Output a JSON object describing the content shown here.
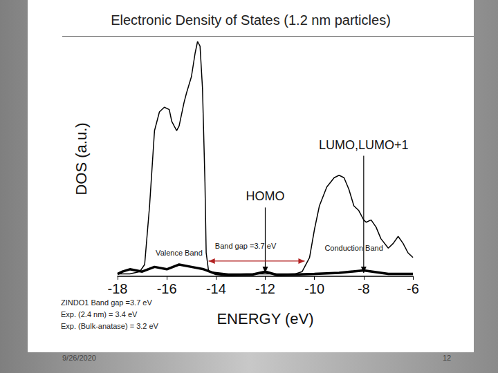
{
  "chart_data": {
    "type": "line",
    "title": "Electronic Density of States (1.2 nm particles)",
    "xlabel": "ENERGY (eV)",
    "ylabel": "DOS (a.u.)",
    "xlim": [
      -18,
      -6
    ],
    "xticks": [
      -18,
      -16,
      -14,
      -12,
      -10,
      -8,
      -6
    ],
    "ylim": [
      0,
      100
    ],
    "tick_labels": "x",
    "grid": false,
    "series": [
      {
        "color": "#000000",
        "line_style": "solid",
        "x": [
          -18,
          -17.5,
          -17.1,
          -16.9,
          -16.7,
          -16.5,
          -16.3,
          -16.1,
          -15.9,
          -15.8,
          -15.6,
          -15.5,
          -15.3,
          -15.2,
          -15.0,
          -14.85,
          -14.75,
          -14.65,
          -14.55,
          -14.45,
          -14.4,
          -14.3,
          -13.5,
          -12.5,
          -11.5,
          -10.8,
          -10.5,
          -10.2,
          -10.0,
          -9.8,
          -9.5,
          -9.2,
          -9.0,
          -8.8,
          -8.6,
          -8.4,
          -8.2,
          -8.0,
          -7.9,
          -7.7,
          -7.5,
          -7.3,
          -7.0,
          -6.8,
          -6.6,
          -6.4,
          -6.2,
          -6.0
        ],
        "values": [
          1,
          1,
          2,
          5,
          30,
          62,
          70,
          72,
          71,
          66,
          62,
          64,
          74,
          78,
          85,
          95,
          100,
          98,
          80,
          40,
          10,
          2,
          1,
          1,
          1,
          1,
          2,
          8,
          20,
          30,
          38,
          42,
          43,
          42,
          37,
          30,
          28,
          24,
          23,
          24,
          21,
          16,
          12,
          14,
          17,
          14,
          10,
          8
        ]
      },
      {
        "color": "#000000",
        "line_style": "solid",
        "x": [
          -18,
          -17.8,
          -17.5,
          -17.0,
          -16.5,
          -16.0,
          -15.5,
          -15.0,
          -14.5,
          -14.0,
          -13.5,
          -12.5,
          -12.0,
          -11.5,
          -10.0,
          -9.0,
          -8.0,
          -7.0,
          -6.0
        ],
        "values": [
          1,
          2,
          3,
          2,
          4,
          3,
          5,
          4,
          3,
          1,
          0.5,
          0.8,
          2,
          0.5,
          1,
          1.5,
          2.5,
          1,
          1
        ]
      }
    ],
    "annotations": [
      {
        "text": "LUMO,LUMO+1",
        "x": -8,
        "y": 1.5,
        "text_y": 56
      },
      {
        "text": "HOMO",
        "x": -12,
        "y": 1.5,
        "text_y": 34
      },
      {
        "text": "Valence Band",
        "x": -15.5,
        "y": 10
      },
      {
        "text": "Band gap =3.7 eV",
        "x": -12.8,
        "y": 13,
        "span": [
          -14.3,
          -10.4
        ],
        "span_y": 6.5
      },
      {
        "text": "Conduction Band",
        "x": -8.4,
        "y": 12
      }
    ],
    "notes": [
      "ZINDO1 Band gap =3.7 eV",
      "Exp. (2.4 nm) = 3.4 eV",
      "Exp. (Bulk-anatase) = 3.2 eV"
    ]
  },
  "footer": {
    "date": "9/26/2020",
    "page": 12
  }
}
